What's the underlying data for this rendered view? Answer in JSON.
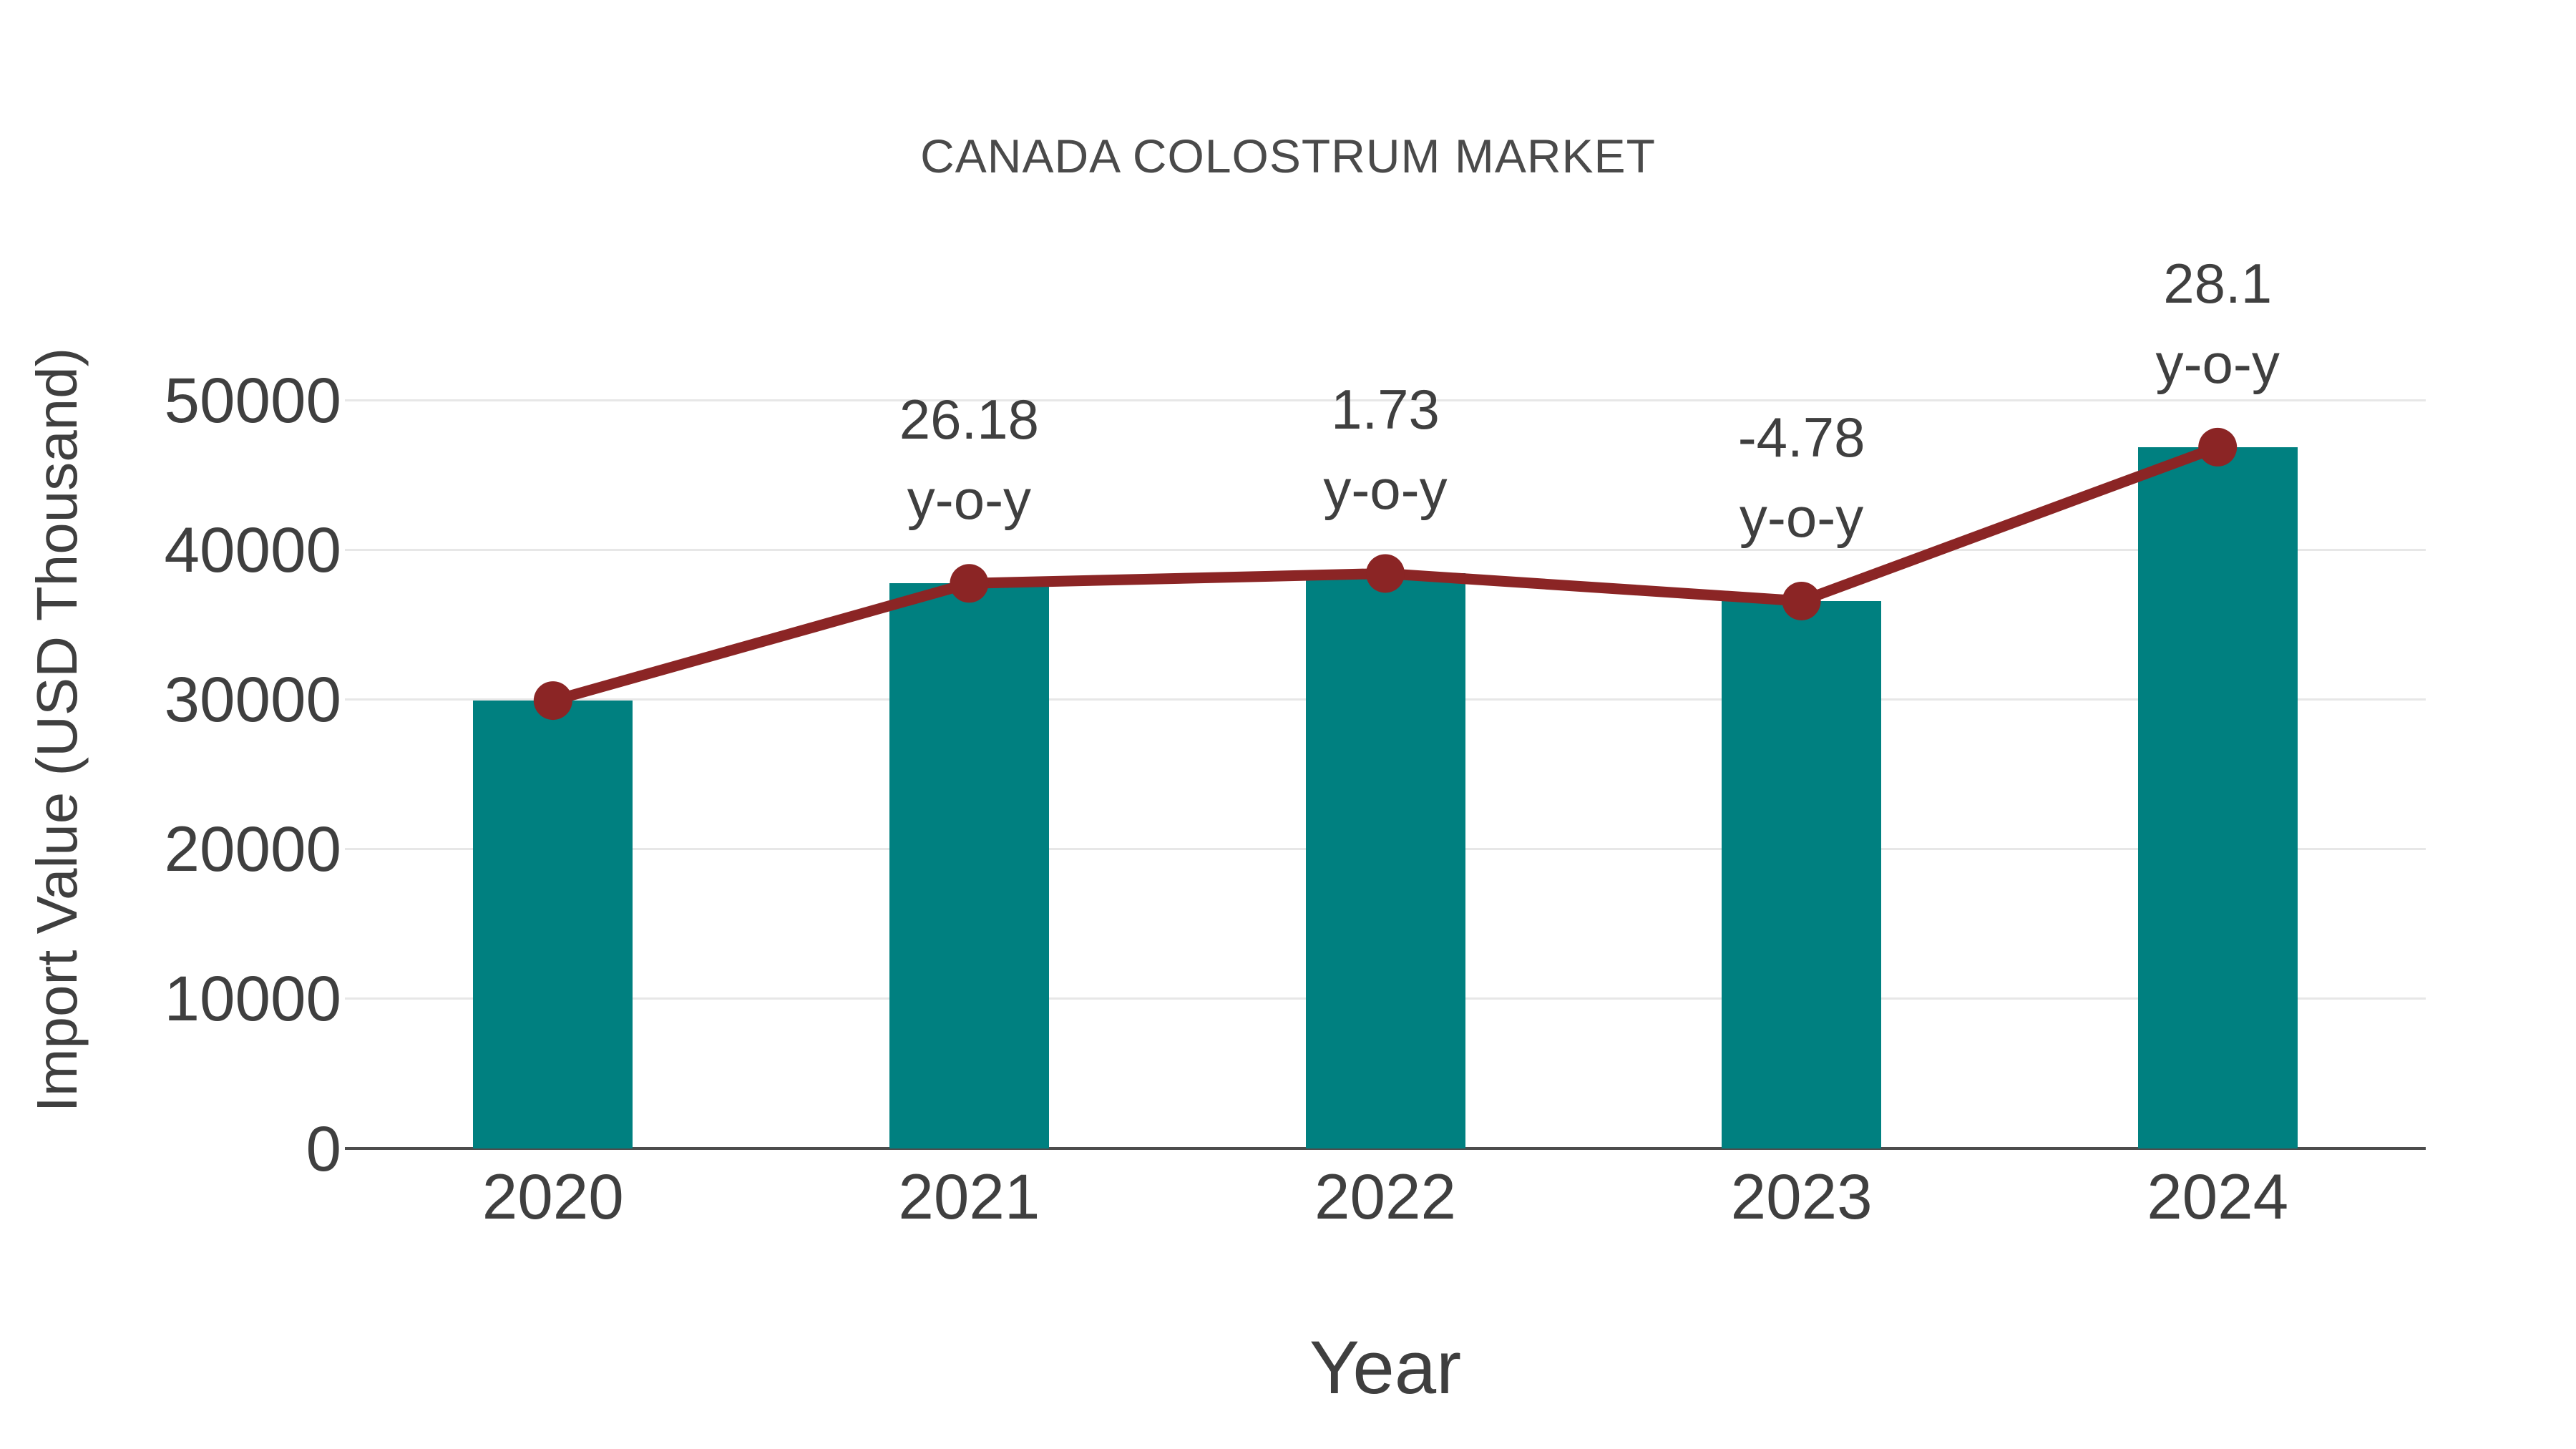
{
  "title": "CANADA COLOSTRUM MARKET",
  "colors": {
    "bar": "#008080",
    "line": "#8B2525",
    "grid": "#E7E7E7",
    "axis": "#4D4D4D",
    "text": "#3F3F3F",
    "title_text": "#4A4A4A"
  },
  "chart_data": {
    "type": "bar",
    "title": "CANADA COLOSTRUM MARKET",
    "xlabel": "Year",
    "ylabel": "Import Value (USD Thousand)",
    "categories": [
      "2020",
      "2021",
      "2022",
      "2023",
      "2024"
    ],
    "series": [
      {
        "name": "Import Value (USD Thousand)",
        "type": "bar",
        "color": "#008080",
        "values": [
          29920,
          37750,
          38410,
          36570,
          46850
        ]
      },
      {
        "name": "y-o-y growth (%)",
        "type": "line",
        "color": "#8B2525",
        "values": [
          null,
          26.18,
          1.73,
          -4.78,
          28.1
        ]
      }
    ],
    "annotations": [
      {
        "category": "2021",
        "value_label": "26.18",
        "suffix": "y-o-y"
      },
      {
        "category": "2022",
        "value_label": "1.73",
        "suffix": "y-o-y"
      },
      {
        "category": "2023",
        "value_label": "-4.78",
        "suffix": "y-o-y"
      },
      {
        "category": "2024",
        "value_label": "28.1",
        "suffix": "y-o-y"
      }
    ],
    "ylim": [
      0,
      50000
    ],
    "yticks": [
      0,
      10000,
      20000,
      30000,
      40000,
      50000
    ],
    "grid": true,
    "legend": "none"
  }
}
